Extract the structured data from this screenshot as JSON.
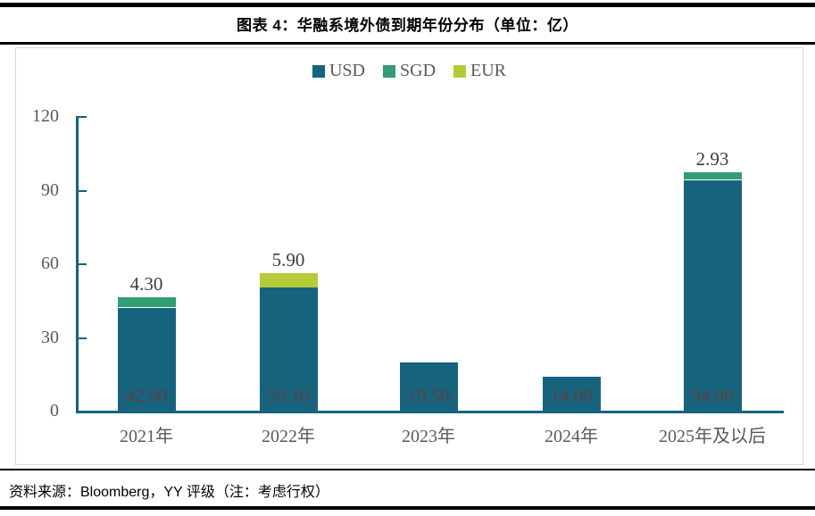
{
  "header": {
    "title": "图表 4：华融系境外债到期年份分布（单位：亿）"
  },
  "footer": {
    "source": "资料来源：Bloomberg，YY 评级（注：考虑行权）"
  },
  "colors": {
    "axis": "#16637e",
    "tick_label": "#595959",
    "category_label": "#595959",
    "legend_text": "#595959",
    "outside_label": "#3d3d3d",
    "inside_label": "#5c4140",
    "frame_border": "#d9d9d9",
    "rule": "#000000"
  },
  "chart_data": {
    "type": "bar",
    "stacked": true,
    "title": "图表 4：华融系境外债到期年份分布（单位：亿）",
    "unit": "亿",
    "categories": [
      "2021年",
      "2022年",
      "2023年",
      "2024年",
      "2025年及以后"
    ],
    "series": [
      {
        "name": "USD",
        "color": "#16637e",
        "values": [
          42.0,
          50.1,
          19.5,
          14.0,
          94.0
        ]
      },
      {
        "name": "SGD",
        "color": "#2f9e72",
        "values": [
          4.3,
          0,
          0,
          0,
          2.93
        ]
      },
      {
        "name": "EUR",
        "color": "#b4cb38",
        "values": [
          0,
          5.9,
          0,
          0,
          0
        ]
      }
    ],
    "inside_labels": [
      "42.00",
      "50.10",
      "19.50",
      "14.00",
      "94.00"
    ],
    "top_labels": [
      "4.30",
      "5.90",
      "",
      "",
      "2.93"
    ],
    "yticks": [
      0,
      30,
      60,
      90,
      120
    ],
    "ylim": [
      0,
      120
    ],
    "legend_position": "top",
    "grid": false
  }
}
